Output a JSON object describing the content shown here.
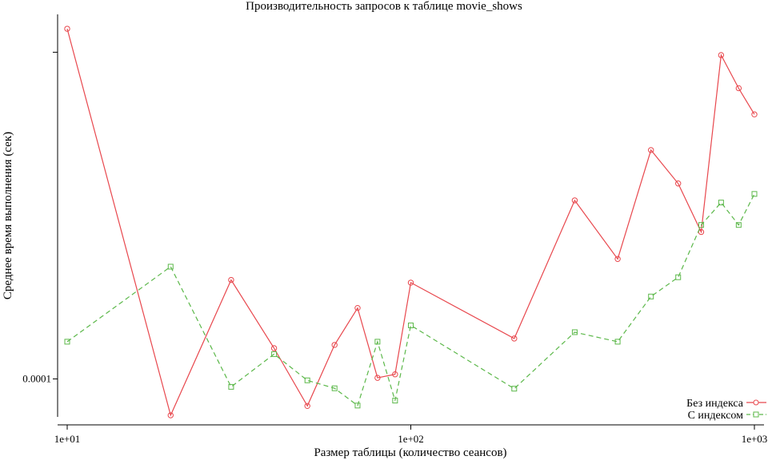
{
  "chart_data": {
    "type": "line",
    "title": "Производительность запросов к таблице movie_shows",
    "xlabel": "Размер таблицы (количество сеансов)",
    "ylabel": "Среднее время выполнения (сек)",
    "x_scale": "log",
    "y_scale": "log",
    "xlim": [
      10,
      1000
    ],
    "ylim": [
      8.99e-05,
      0.000278
    ],
    "x_ticks": [
      {
        "value": 10,
        "label": "1e+01"
      },
      {
        "value": 100,
        "label": "1e+02"
      },
      {
        "value": 1000,
        "label": "1e+03"
      }
    ],
    "y_ticks": [
      {
        "value": 0.0001,
        "label": "0.0001"
      },
      {
        "value": 0.00025,
        "label": ""
      }
    ],
    "grid": false,
    "legend_position": "bottom-right",
    "x": [
      10,
      20,
      30,
      40,
      50,
      60,
      70,
      80,
      90,
      100,
      200,
      300,
      400,
      500,
      600,
      700,
      800,
      900,
      1000
    ],
    "series": [
      {
        "name": "Без индекса",
        "color": "#e8474d",
        "marker": "circle",
        "dash": "solid",
        "values": [
          0.000267,
          9.03e-05,
          0.000132,
          0.000109,
          9.27e-05,
          0.00011,
          0.000122,
          0.0001003,
          0.0001013,
          0.000131,
          0.000112,
          0.000165,
          0.00014,
          0.00019,
          0.000173,
          0.000151,
          0.000248,
          0.000226,
          0.00021
        ]
      },
      {
        "name": "С индексом",
        "color": "#5cb84a",
        "marker": "square",
        "dash": "dashed",
        "values": [
          0.000111,
          0.000137,
          9.78e-05,
          0.0001072,
          9.96e-05,
          9.74e-05,
          9.28e-05,
          0.000111,
          9.41e-05,
          0.0001162,
          9.73e-05,
          0.000114,
          0.000111,
          0.000126,
          0.000133,
          0.000154,
          0.000164,
          0.000154,
          0.000168
        ]
      }
    ]
  }
}
